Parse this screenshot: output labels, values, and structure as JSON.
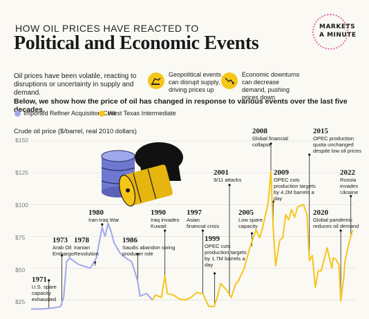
{
  "header": {
    "kicker": "HOW OIL PRICES HAVE REACTED TO",
    "title": "Political and Economic Events",
    "logo_line1": "MARKETS",
    "logo_line2": "A MINUTE",
    "logo_in": "IN"
  },
  "intro": {
    "text": "Oil prices have been volatile, reacting to disruptions or uncertainty in supply and demand.",
    "geo": "Geopolitical events can disrupt supply, driving prices up",
    "econ": "Economic downturns can decrease demand, pushing prices down"
  },
  "subtitle": "Below, we show how the price of oil has changed in response to various events over the last five decades.",
  "colors": {
    "blue": "#9ea8ea",
    "yellow": "#f5c518",
    "accent_pink": "#e06aa8"
  },
  "legend": [
    {
      "name": "Imported Refiner Acquisition Cost",
      "color": "#9ea8ea"
    },
    {
      "name": "West Texas Intermediate",
      "color": "#f5c518"
    }
  ],
  "chart_data": {
    "type": "line",
    "ylabel": "Crude oil price ($/barrel, real 2010 dollars)",
    "xlim": [
      1968,
      2022.5
    ],
    "ylim": [
      15,
      150
    ],
    "yticks": [
      "$150",
      "$125",
      "$100",
      "$75",
      "$50",
      "$25"
    ],
    "ytick_values": [
      150,
      125,
      100,
      75,
      50,
      25
    ],
    "series": [
      {
        "name": "Imported Refiner Acquisition Cost",
        "color": "#9ea8ea",
        "x": [
          1968,
          1970,
          1972,
          1973.0,
          1973.5,
          1974.0,
          1974.5,
          1976,
          1978,
          1979.0,
          1979.5,
          1980.0,
          1980.5,
          1981.0,
          1981.5,
          1982.0,
          1983,
          1984,
          1985,
          1986.0,
          1986.4,
          1986.8,
          1987.5,
          1988.5
        ],
        "y": [
          18,
          18,
          19,
          20,
          27,
          55,
          58,
          53,
          50,
          58,
          70,
          82,
          75,
          85,
          79,
          70,
          62,
          58,
          55,
          40,
          28,
          29,
          30,
          25
        ]
      },
      {
        "name": "West Texas Intermediate",
        "color": "#f5c518",
        "x": [
          1988.5,
          1989,
          1990.0,
          1990.6,
          1991,
          1992,
          1993,
          1994,
          1995,
          1996,
          1997,
          1998,
          1998.9,
          1999.5,
          2000,
          2001,
          2001.8,
          2002.5,
          2003,
          2004,
          2005,
          2005.6,
          2006,
          2006.6,
          2007,
          2007.6,
          2008.0,
          2008.5,
          2008.9,
          2009.3,
          2010,
          2010.5,
          2011,
          2011.5,
          2012,
          2012.5,
          2013,
          2014,
          2014.6,
          2015,
          2015.5,
          2016.0,
          2016.5,
          2017,
          2018,
          2018.8,
          2019,
          2019.5,
          2020.0,
          2020.3,
          2020.8,
          2021,
          2021.5,
          2022,
          2022.3
        ],
        "y": [
          25,
          29,
          27,
          44,
          30,
          29,
          26,
          25,
          27,
          31,
          30,
          20,
          20,
          28,
          38,
          33,
          27,
          37,
          40,
          50,
          67,
          75,
          80,
          74,
          80,
          92,
          100,
          126,
          80,
          52,
          72,
          74,
          92,
          88,
          96,
          90,
          98,
          100,
          92,
          56,
          60,
          35,
          48,
          48,
          66,
          50,
          58,
          57,
          52,
          24,
          42,
          55,
          66,
          75,
          80
        ]
      }
    ],
    "annotations": [
      {
        "year": "1971",
        "text": "U.S. spare capacity exhausted",
        "x": 1971,
        "y": 18,
        "stem_top": 406
      },
      {
        "year": "1973",
        "text": "Arab Oil Embargo",
        "x": 1973.2,
        "y": 21,
        "stem_top": 370
      },
      {
        "year": "1978",
        "text": "Iranian Revolution",
        "x": 1978.8,
        "y": 52,
        "stem_top": 380
      },
      {
        "year": "1980",
        "text": "Iran-Iraq War",
        "x": 1980.0,
        "y": 80,
        "stem_top": 325
      },
      {
        "year": "1986",
        "text": "Saudis abandon swing producer role",
        "x": 1986.0,
        "y": 40,
        "stem_top": 368
      },
      {
        "year": "1990",
        "text": "Iraq invades Kuwait",
        "x": 1990.6,
        "y": 44,
        "stem_top": 334
      },
      {
        "year": "1997",
        "text": "Asian financial crisis",
        "x": 1997.0,
        "y": 30,
        "stem_top": 334
      },
      {
        "year": "1999",
        "text": "OPEC cuts production targets by 1.7M barrels a day",
        "x": 1999.0,
        "y": 20,
        "stem_top": 396
      },
      {
        "year": "2001",
        "text": "9/11 attacks",
        "x": 2001.5,
        "y": 28,
        "stem_top": 268
      },
      {
        "year": "2005",
        "text": "Low spare capacity",
        "x": 2005.3,
        "y": 67,
        "stem_top": 338
      },
      {
        "year": "2008",
        "text": "Global financial collapse",
        "x": 2008.5,
        "y": 126,
        "stem_top": 208
      },
      {
        "year": "2009",
        "text": "OPEC cuts production targets by 4.2M barrels a day",
        "x": 2008.9,
        "y": 80,
        "stem_top": 292
      },
      {
        "year": "2015",
        "text": "OPEC production quota unchanged despite low oil prices",
        "x": 2015.0,
        "y": 56,
        "stem_top": 224
      },
      {
        "year": "2020",
        "text": "Global pandemic reduces oil demand",
        "x": 2020.3,
        "y": 24,
        "stem_top": 334
      },
      {
        "year": "2022",
        "text": "Russia invades Ukraine",
        "x": 2022.0,
        "y": 75,
        "stem_top": 284
      }
    ]
  }
}
